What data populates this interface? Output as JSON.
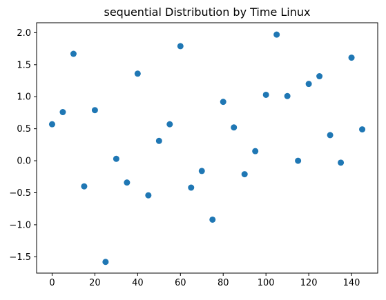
{
  "chart_data": {
    "type": "scatter",
    "title": "sequential Distribution by Time Linux",
    "xlabel": "",
    "ylabel": "",
    "xlim": [
      -7.25,
      152.25
    ],
    "ylim": [
      -1.755,
      2.155
    ],
    "xticks": [
      0,
      20,
      40,
      60,
      80,
      100,
      120,
      140
    ],
    "yticks": [
      -1.5,
      -1.0,
      -0.5,
      0.0,
      0.5,
      1.0,
      1.5,
      2.0
    ],
    "ytick_labels": [
      "−1.5",
      "−1.0",
      "−0.5",
      "0.0",
      "0.5",
      "1.0",
      "1.5",
      "2.0"
    ],
    "grid": false,
    "marker_color": "#1f77b4",
    "points": [
      {
        "x": 0,
        "y": 0.57
      },
      {
        "x": 5,
        "y": 0.76
      },
      {
        "x": 10,
        "y": 1.67
      },
      {
        "x": 15,
        "y": -0.4
      },
      {
        "x": 20,
        "y": 0.79
      },
      {
        "x": 25,
        "y": -1.58
      },
      {
        "x": 30,
        "y": 0.03
      },
      {
        "x": 35,
        "y": -0.34
      },
      {
        "x": 40,
        "y": 1.36
      },
      {
        "x": 45,
        "y": -0.54
      },
      {
        "x": 50,
        "y": 0.31
      },
      {
        "x": 55,
        "y": 0.57
      },
      {
        "x": 60,
        "y": 1.79
      },
      {
        "x": 65,
        "y": -0.42
      },
      {
        "x": 70,
        "y": -0.16
      },
      {
        "x": 75,
        "y": -0.92
      },
      {
        "x": 80,
        "y": 0.92
      },
      {
        "x": 85,
        "y": 0.52
      },
      {
        "x": 90,
        "y": -0.21
      },
      {
        "x": 95,
        "y": 0.15
      },
      {
        "x": 100,
        "y": 1.03
      },
      {
        "x": 105,
        "y": 1.97
      },
      {
        "x": 110,
        "y": 1.01
      },
      {
        "x": 115,
        "y": 0.0
      },
      {
        "x": 120,
        "y": 1.2
      },
      {
        "x": 125,
        "y": 1.32
      },
      {
        "x": 130,
        "y": 0.4
      },
      {
        "x": 135,
        "y": -0.03
      },
      {
        "x": 140,
        "y": 1.61
      },
      {
        "x": 145,
        "y": 0.49
      }
    ]
  }
}
